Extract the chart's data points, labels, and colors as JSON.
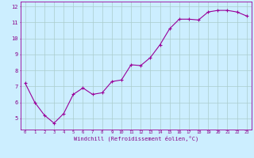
{
  "x": [
    0,
    1,
    2,
    3,
    4,
    5,
    6,
    7,
    8,
    9,
    10,
    11,
    12,
    13,
    14,
    15,
    16,
    17,
    18,
    19,
    20,
    21,
    22,
    23
  ],
  "y": [
    7.2,
    6.0,
    5.2,
    4.7,
    5.3,
    6.5,
    6.9,
    6.5,
    6.6,
    7.3,
    7.4,
    8.35,
    8.3,
    8.8,
    9.6,
    10.6,
    11.2,
    11.2,
    11.15,
    11.65,
    11.75,
    11.75,
    11.65,
    11.4
  ],
  "xlim": [
    -0.5,
    23.5
  ],
  "ylim": [
    4.3,
    12.3
  ],
  "yticks": [
    5,
    6,
    7,
    8,
    9,
    10,
    11,
    12
  ],
  "xticks": [
    0,
    1,
    2,
    3,
    4,
    5,
    6,
    7,
    8,
    9,
    10,
    11,
    12,
    13,
    14,
    15,
    16,
    17,
    18,
    19,
    20,
    21,
    22,
    23
  ],
  "xlabel": "Windchill (Refroidissement éolien,°C)",
  "line_color": "#990099",
  "marker": "+",
  "marker_size": 3,
  "background_color": "#cceeff",
  "grid_color": "#aacccc",
  "tick_label_color": "#880088",
  "xlabel_color": "#880088",
  "title": ""
}
